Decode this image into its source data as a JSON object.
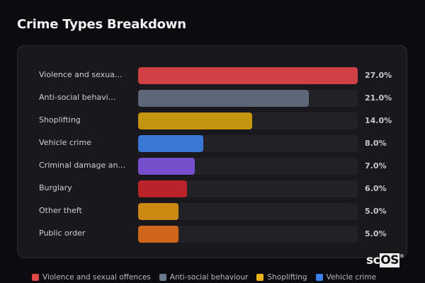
{
  "title": "Crime Types Breakdown",
  "chart_data": {
    "type": "bar",
    "orientation": "horizontal",
    "title": "Crime Types Breakdown",
    "categories": [
      "Violence and sexual offences",
      "Anti-social behaviour",
      "Shoplifting",
      "Vehicle crime",
      "Criminal damage and arson",
      "Burglary",
      "Other theft",
      "Public order"
    ],
    "display_labels": [
      "Violence and sexua...",
      "Anti-social behavi...",
      "Shoplifting",
      "Vehicle crime",
      "Criminal damage an...",
      "Burglary",
      "Other theft",
      "Public order"
    ],
    "values": [
      27.0,
      21.0,
      14.0,
      8.0,
      7.0,
      6.0,
      5.0,
      5.0
    ],
    "value_labels": [
      "27.0%",
      "21.0%",
      "14.0%",
      "8.0%",
      "7.0%",
      "6.0%",
      "5.0%",
      "5.0%"
    ],
    "colors": [
      "#d04044",
      "#5d6778",
      "#c4960f",
      "#3a78d6",
      "#7650cc",
      "#b8242a",
      "#cc8a12",
      "#d0661c"
    ],
    "xmax": 27.0,
    "unit": "%",
    "legend_position": "bottom",
    "grid": false
  },
  "legend": [
    {
      "label": "Violence and sexual offences",
      "color": "#e04848"
    },
    {
      "label": "Anti-social behaviour",
      "color": "#6b788e"
    },
    {
      "label": "Shoplifting",
      "color": "#e8b21a"
    },
    {
      "label": "Vehicle crime",
      "color": "#3b82f0"
    }
  ],
  "logo": {
    "prefix": "sc",
    "boxed": "OS",
    "mark": "®"
  }
}
